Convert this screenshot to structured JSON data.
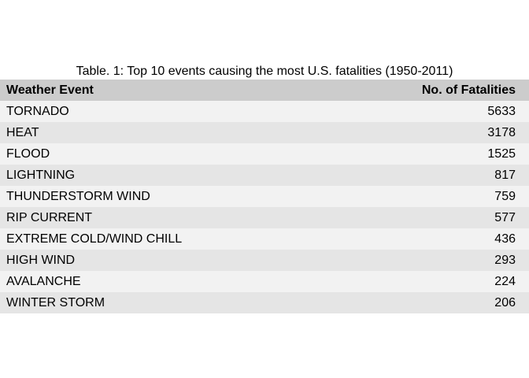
{
  "table": {
    "caption": "Table. 1: Top 10 events causing the most U.S. fatalities (1950-2011)",
    "columns": [
      "Weather Event",
      "No. of Fatalities"
    ],
    "rows": [
      [
        "TORNADO",
        "5633"
      ],
      [
        "HEAT",
        "3178"
      ],
      [
        "FLOOD",
        "1525"
      ],
      [
        "LIGHTNING",
        "817"
      ],
      [
        "THUNDERSTORM WIND",
        "759"
      ],
      [
        "RIP CURRENT",
        "577"
      ],
      [
        "EXTREME COLD/WIND CHILL",
        "436"
      ],
      [
        "HIGH WIND",
        "293"
      ],
      [
        "AVALANCHE",
        "224"
      ],
      [
        "WINTER STORM",
        "206"
      ]
    ]
  },
  "colors": {
    "header_bg": "#cccccc",
    "row_odd_bg": "#f2f2f2",
    "row_even_bg": "#e5e5e5",
    "text": "#000000"
  }
}
